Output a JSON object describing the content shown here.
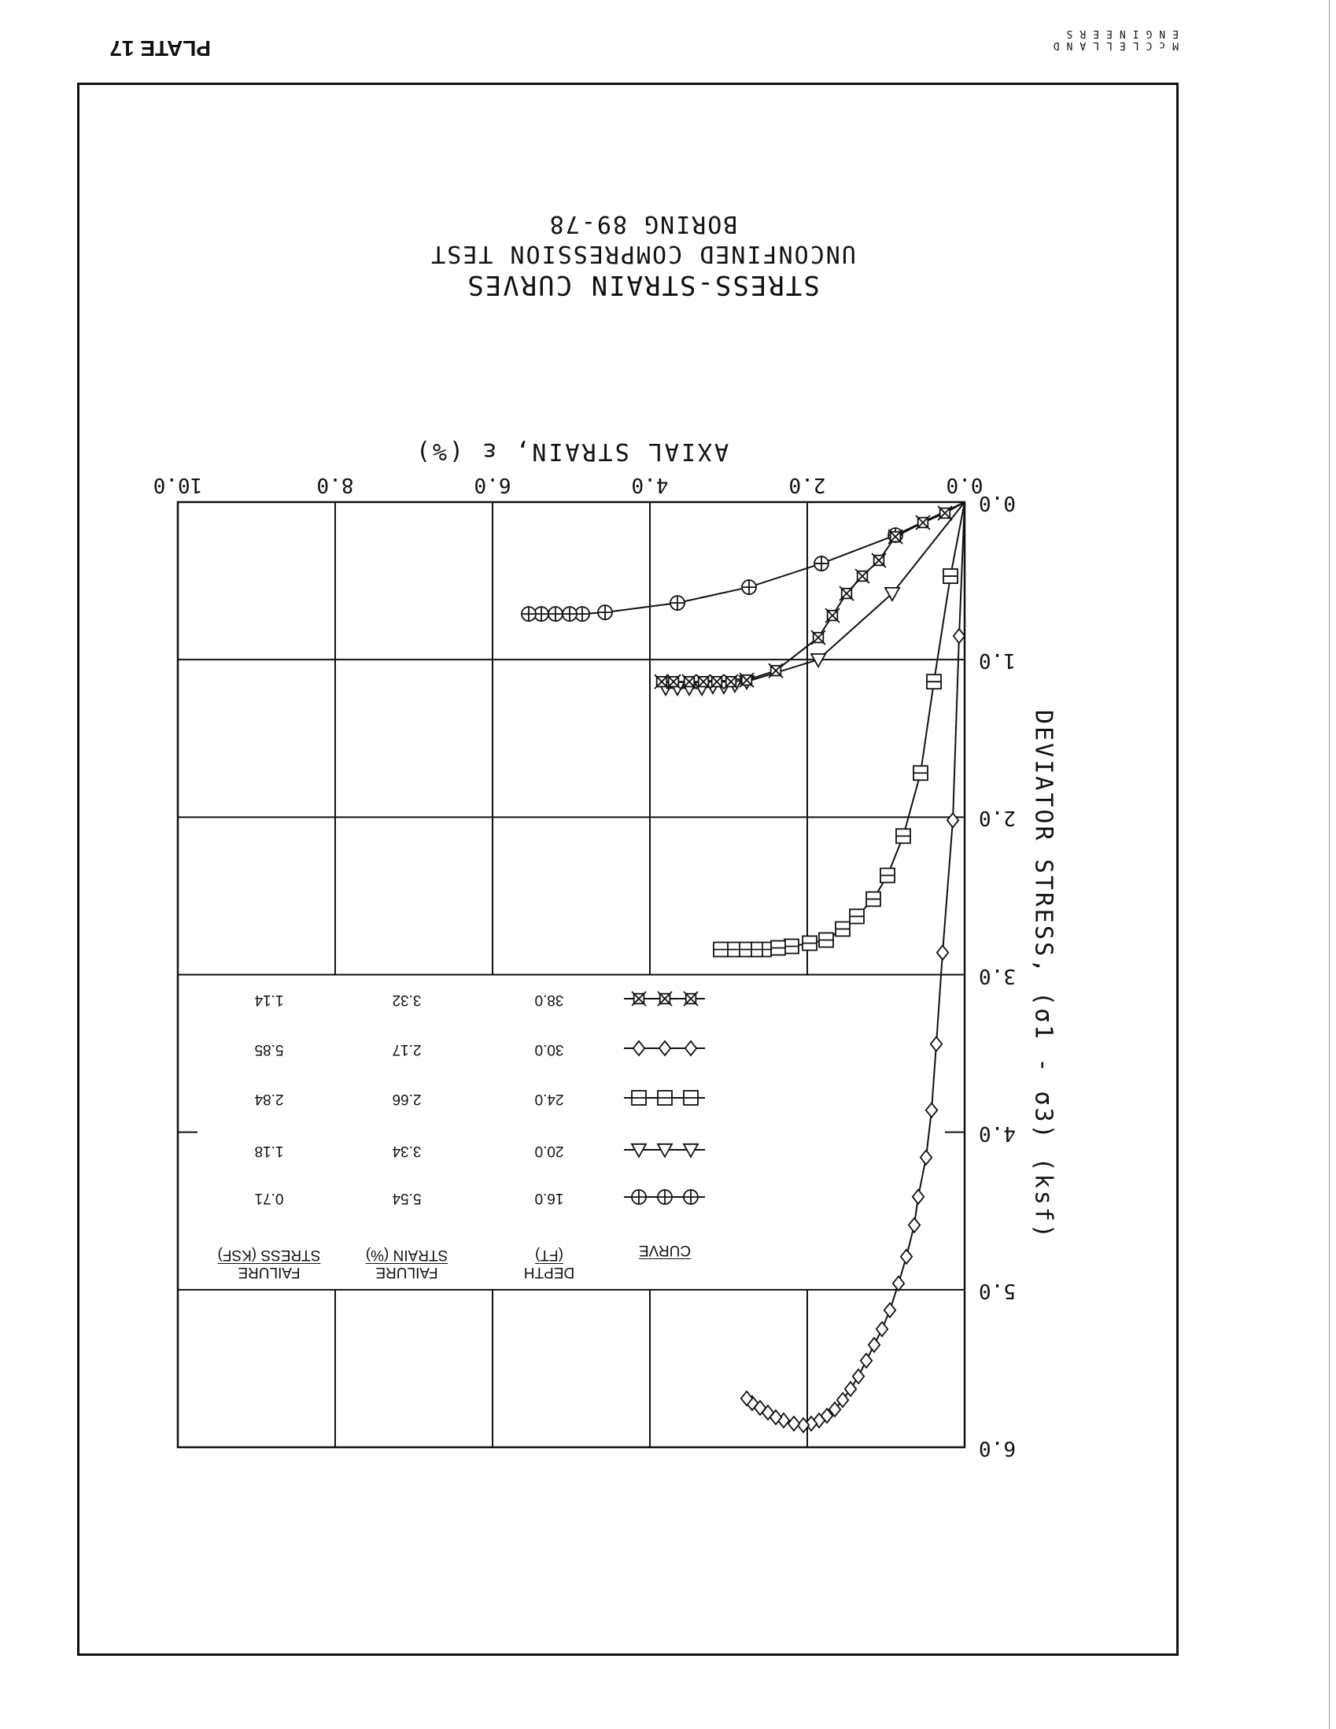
{
  "header": {
    "plate": "PLATE 17",
    "logo_line1": "McCLELLAND",
    "logo_line2": "ENGINEERS"
  },
  "chart_data": {
    "type": "line",
    "title": "STRESS-STRAIN CURVES",
    "subtitle": "UNCONFINED COMPRESSION TEST",
    "subtitle2": "BORING 89-78",
    "xlabel": "AXIAL STRAIN, ε (%)",
    "ylabel": "DEVIATOR STRESS, (σ1 - σ3) (ksf)",
    "xlim": [
      0,
      10
    ],
    "ylim": [
      0,
      6
    ],
    "xticks": [
      "0.0",
      "2.0",
      "4.0",
      "6.0",
      "8.0",
      "10.0"
    ],
    "yticks": [
      "0.0",
      "1.0",
      "2.0",
      "3.0",
      "4.0",
      "5.0",
      "6.0"
    ],
    "grid": true,
    "legend": {
      "placement": "center",
      "headers": {
        "curve": "CURVE",
        "depth1": "DEPTH",
        "depth2": "(FT)",
        "strain1": "FAILURE",
        "strain2": "STRAIN (%)",
        "stress1": "FAILURE",
        "stress2": "STRESS (KSF)"
      }
    },
    "series": [
      {
        "name": "16.0",
        "marker": "circle-cross",
        "depth": "16.0",
        "failure_strain": "5.54",
        "failure_stress": "0.71",
        "x": [
          0,
          0.88,
          1.82,
          2.74,
          3.65,
          4.57,
          4.86,
          5.02,
          5.2,
          5.38,
          5.54
        ],
        "y": [
          0,
          0.21,
          0.39,
          0.54,
          0.64,
          0.7,
          0.71,
          0.71,
          0.71,
          0.71,
          0.71
        ]
      },
      {
        "name": "20.0",
        "marker": "triangle",
        "depth": "20.0",
        "failure_strain": "3.34",
        "failure_stress": "1.18",
        "x": [
          0,
          0.92,
          1.86,
          2.77,
          2.92,
          3.06,
          3.2,
          3.34,
          3.5,
          3.65,
          3.8
        ],
        "y": [
          0,
          0.58,
          1.0,
          1.14,
          1.16,
          1.17,
          1.17,
          1.18,
          1.18,
          1.18,
          1.18
        ]
      },
      {
        "name": "24.0",
        "marker": "square",
        "depth": "24.0",
        "failure_strain": "2.66",
        "failure_stress": "2.84",
        "x": [
          0,
          0.18,
          0.39,
          0.56,
          0.78,
          0.98,
          1.16,
          1.37,
          1.55,
          1.76,
          1.97,
          2.2,
          2.37,
          2.55,
          2.66,
          2.8,
          2.95,
          3.1
        ],
        "y": [
          0,
          0.47,
          1.14,
          1.72,
          2.12,
          2.37,
          2.52,
          2.63,
          2.71,
          2.78,
          2.8,
          2.82,
          2.83,
          2.84,
          2.84,
          2.84,
          2.84,
          2.84
        ]
      },
      {
        "name": "30.0",
        "marker": "diamond",
        "depth": "30.0",
        "failure_strain": "2.17",
        "failure_stress": "5.85",
        "x": [
          0,
          0.07,
          0.15,
          0.28,
          0.36,
          0.42,
          0.49,
          0.59,
          0.64,
          0.74,
          0.84,
          0.95,
          1.05,
          1.15,
          1.25,
          1.35,
          1.45,
          1.55,
          1.65,
          1.75,
          1.85,
          1.95,
          2.05,
          2.17,
          2.3,
          2.4,
          2.5,
          2.6,
          2.7,
          2.77
        ],
        "y": [
          0,
          0.85,
          2.02,
          2.86,
          3.44,
          3.86,
          4.16,
          4.41,
          4.59,
          4.79,
          4.96,
          5.13,
          5.25,
          5.35,
          5.45,
          5.55,
          5.63,
          5.7,
          5.76,
          5.8,
          5.83,
          5.85,
          5.86,
          5.85,
          5.83,
          5.81,
          5.78,
          5.75,
          5.72,
          5.69
        ]
      },
      {
        "name": "38.0",
        "marker": "box-x",
        "depth": "38.0",
        "failure_strain": "3.32",
        "failure_stress": "1.14",
        "x": [
          0,
          0.25,
          0.53,
          0.88,
          1.09,
          1.3,
          1.5,
          1.68,
          1.86,
          2.4,
          2.77,
          2.97,
          3.15,
          3.32,
          3.5,
          3.7,
          3.85
        ],
        "y": [
          0,
          0.07,
          0.13,
          0.22,
          0.37,
          0.47,
          0.58,
          0.72,
          0.86,
          1.07,
          1.13,
          1.14,
          1.14,
          1.14,
          1.14,
          1.14,
          1.14
        ]
      }
    ]
  }
}
